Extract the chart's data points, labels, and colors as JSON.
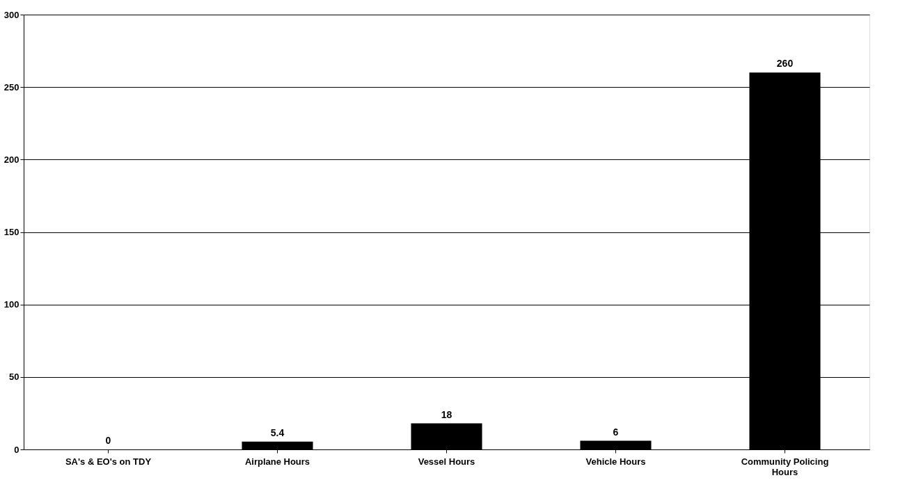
{
  "chart_data": {
    "type": "bar",
    "categories": [
      "SA's & EO's on TDY",
      "Airplane Hours",
      "Vessel Hours",
      "Vehicle Hours",
      "Community Policing Hours"
    ],
    "values": [
      0,
      5.4,
      18,
      6,
      260
    ],
    "color": "#000000",
    "ylim": [
      0,
      300
    ],
    "yticks": [
      0,
      50,
      100,
      150,
      200,
      250,
      300
    ],
    "grid": "y",
    "data_labels": true
  }
}
